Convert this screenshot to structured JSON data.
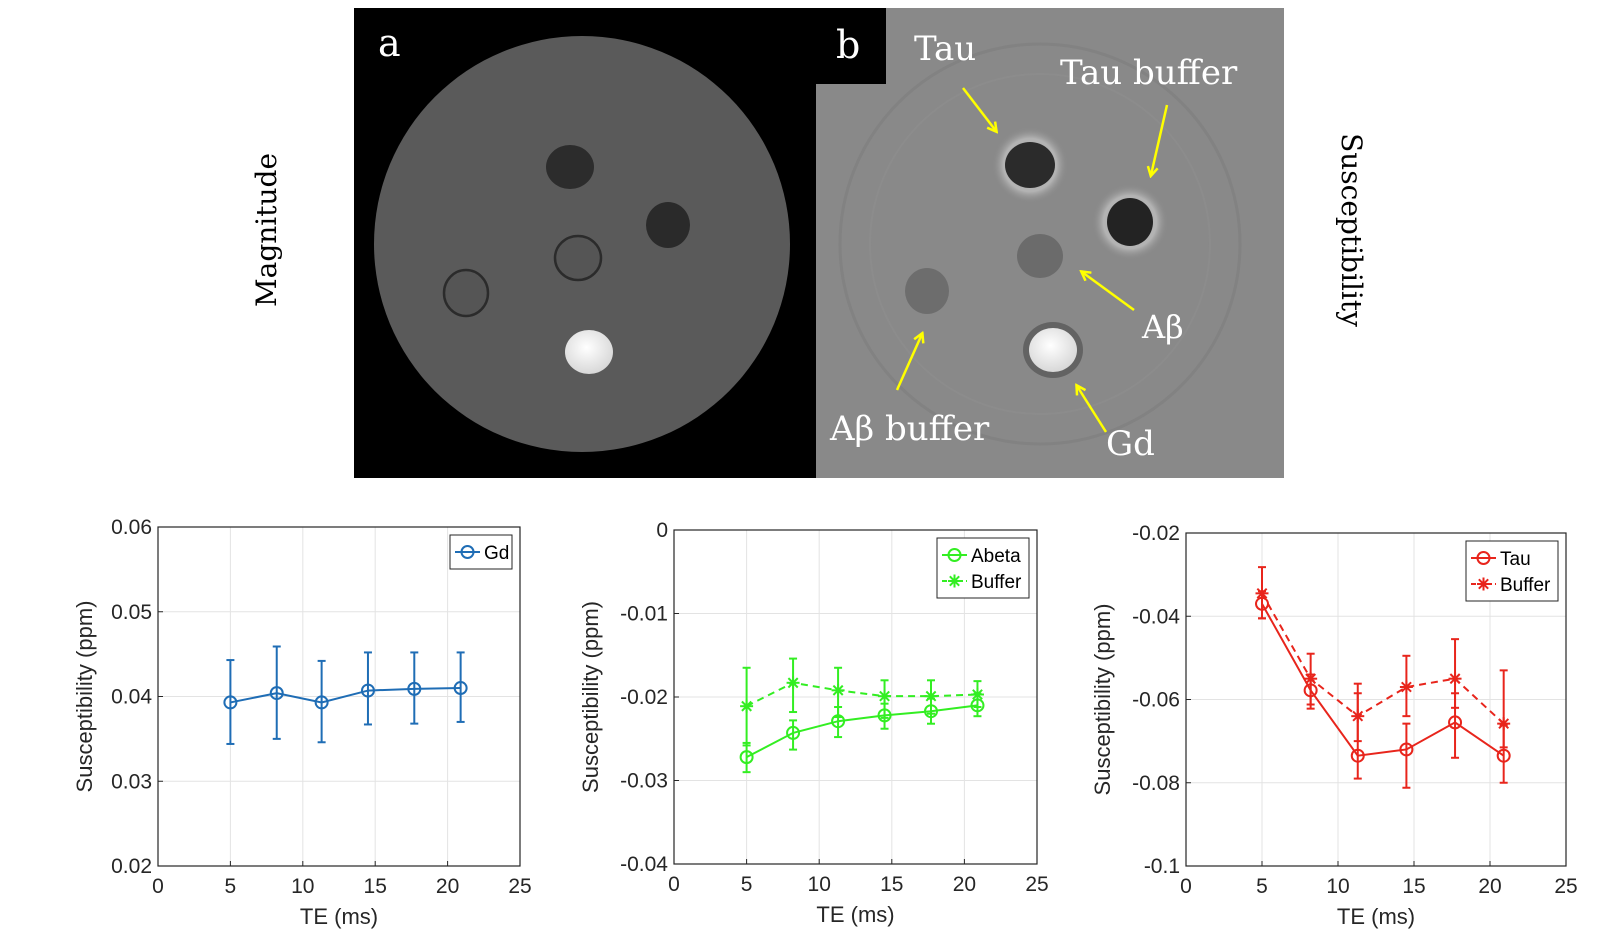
{
  "images": {
    "panel_a": {
      "letter": "a",
      "row_label": "Magnitude"
    },
    "panel_b": {
      "letter": "b",
      "row_label": "Susceptibility",
      "labels": {
        "tau": "Tau",
        "tau_buffer": "Tau buffer",
        "abeta": "Aβ",
        "abeta_buffer": "Aβ buffer",
        "gd": "Gd"
      },
      "arrow_color": "#ffff00"
    }
  },
  "chart_data": [
    {
      "type": "line",
      "xlabel": "TE (ms)",
      "ylabel": "Susceptibility (ppm)",
      "xlim": [
        0,
        25
      ],
      "ylim": [
        0.02,
        0.06
      ],
      "xticks": [
        0,
        5,
        10,
        15,
        20,
        25
      ],
      "xtick_labels": [
        "0",
        "5",
        "10",
        "15",
        "20",
        "25"
      ],
      "yticks": [
        0.02,
        0.03,
        0.04,
        0.05,
        0.06
      ],
      "ytick_labels": [
        "0.02",
        "0.03",
        "0.04",
        "0.05",
        "0.06"
      ],
      "grid": true,
      "legend": "top-right",
      "x": [
        5,
        8.2,
        11.3,
        14.5,
        17.7,
        20.9
      ],
      "series": [
        {
          "name": "Gd",
          "color": "#1f6db5",
          "marker": "o",
          "linestyle": "solid",
          "values": [
            0.0393,
            0.0404,
            0.0393,
            0.0407,
            0.0409,
            0.041
          ],
          "err_low": [
            0.0344,
            0.035,
            0.0346,
            0.0367,
            0.0368,
            0.037
          ],
          "err_high": [
            0.0443,
            0.0459,
            0.0442,
            0.0452,
            0.0452,
            0.0452
          ]
        }
      ]
    },
    {
      "type": "line",
      "xlabel": "TE (ms)",
      "ylabel": "Susceptibility (ppm)",
      "xlim": [
        0,
        25
      ],
      "ylim": [
        -0.04,
        0
      ],
      "xticks": [
        0,
        5,
        10,
        15,
        20,
        25
      ],
      "xtick_labels": [
        "0",
        "5",
        "10",
        "15",
        "20",
        "25"
      ],
      "yticks": [
        -0.04,
        -0.03,
        -0.02,
        -0.01,
        0
      ],
      "ytick_labels": [
        "-0.04",
        "-0.03",
        "-0.02",
        "-0.01",
        "0"
      ],
      "grid": true,
      "legend": "top-right",
      "x": [
        5,
        8.2,
        11.3,
        14.5,
        17.7,
        20.9
      ],
      "series": [
        {
          "name": "Abeta",
          "color": "#33ee22",
          "marker": "o",
          "linestyle": "solid",
          "values": [
            -0.0272,
            -0.0243,
            -0.0229,
            -0.0222,
            -0.0217,
            -0.021
          ],
          "err_low": [
            -0.029,
            -0.0263,
            -0.0248,
            -0.0238,
            -0.0232,
            -0.0223
          ],
          "err_high": [
            -0.0255,
            -0.0228,
            -0.0212,
            -0.0208,
            -0.0202,
            -0.0196
          ]
        },
        {
          "name": "Buffer",
          "color": "#33ee22",
          "marker": "*",
          "linestyle": "dashed",
          "values": [
            -0.0211,
            -0.0183,
            -0.0192,
            -0.0199,
            -0.0199,
            -0.0197
          ],
          "err_low": [
            -0.0258,
            -0.0218,
            -0.0224,
            -0.0225,
            -0.022,
            -0.0212
          ],
          "err_high": [
            -0.0165,
            -0.0154,
            -0.0165,
            -0.018,
            -0.018,
            -0.0181
          ]
        }
      ]
    },
    {
      "type": "line",
      "xlabel": "TE (ms)",
      "ylabel": "Susceptibility (ppm)",
      "xlim": [
        0,
        25
      ],
      "ylim": [
        -0.1,
        -0.02
      ],
      "xticks": [
        0,
        5,
        10,
        15,
        20,
        25
      ],
      "xtick_labels": [
        "0",
        "5",
        "10",
        "15",
        "20",
        "25"
      ],
      "yticks": [
        -0.1,
        -0.08,
        -0.06,
        -0.04,
        -0.02
      ],
      "ytick_labels": [
        "-0.1",
        "-0.08",
        "-0.06",
        "-0.04",
        "-0.02"
      ],
      "grid": true,
      "legend": "top-right",
      "x": [
        5,
        8.2,
        11.3,
        14.5,
        17.7,
        20.9
      ],
      "series": [
        {
          "name": "Tau",
          "color": "#e8251c",
          "marker": "o",
          "linestyle": "solid",
          "values": [
            -0.037,
            -0.0578,
            -0.0735,
            -0.072,
            -0.0655,
            -0.0735
          ],
          "err_low": [
            -0.0405,
            -0.0622,
            -0.079,
            -0.0812,
            -0.074,
            -0.08
          ],
          "err_high": [
            -0.034,
            -0.054,
            -0.0562,
            -0.0658,
            -0.0585,
            -0.0662
          ]
        },
        {
          "name": "Buffer",
          "color": "#e8251c",
          "marker": "*",
          "linestyle": "dashed",
          "values": [
            -0.0345,
            -0.055,
            -0.064,
            -0.057,
            -0.055,
            -0.0658
          ],
          "err_low": [
            -0.0405,
            -0.0612,
            -0.07,
            -0.064,
            -0.062,
            -0.0715
          ],
          "err_high": [
            -0.0282,
            -0.049,
            -0.0585,
            -0.0495,
            -0.0455,
            -0.053
          ]
        }
      ]
    }
  ]
}
